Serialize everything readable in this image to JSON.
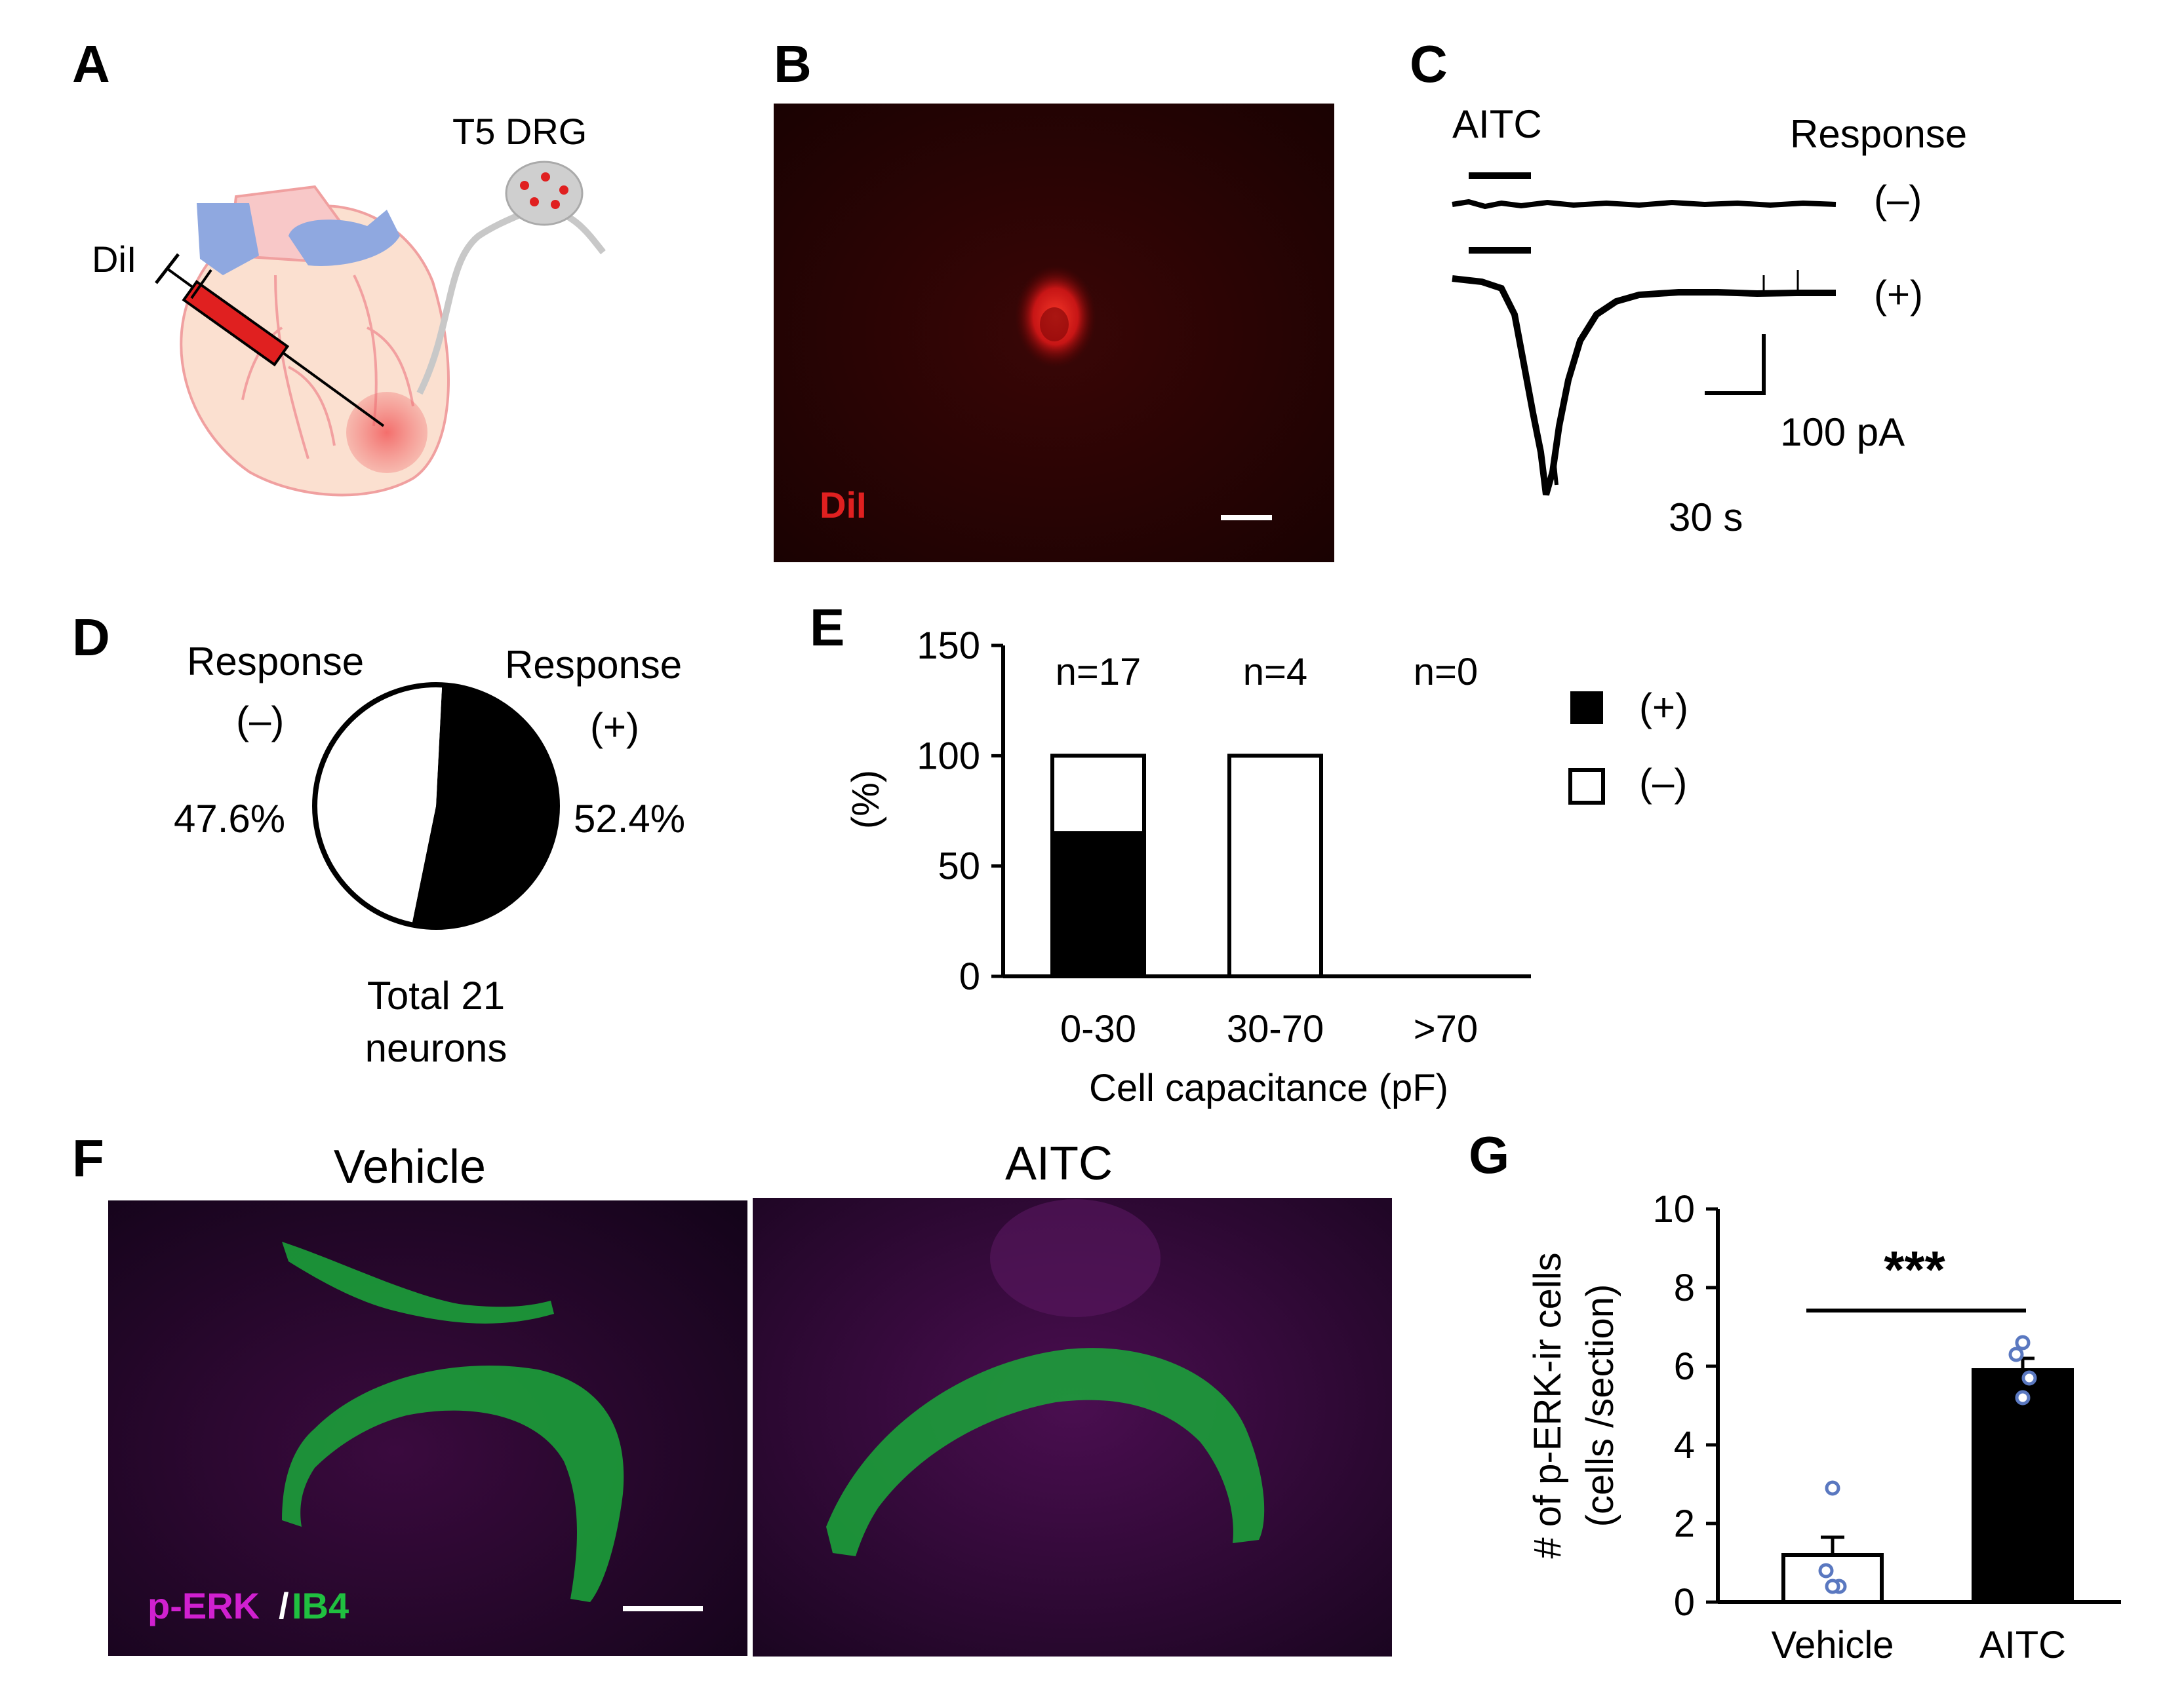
{
  "panels": {
    "a": {
      "letter": "A",
      "label_dii": "DiI",
      "label_drg": "T5 DRG"
    },
    "b": {
      "letter": "B",
      "label_dii": "DiI"
    },
    "c": {
      "letter": "C",
      "stimulus_label": "AITC",
      "response_header": "Response",
      "trace_neg_label": "(–)",
      "trace_pos_label": "(+)",
      "scale_y_label": "100 pA",
      "scale_x_label": "30 s"
    },
    "d": {
      "letter": "D",
      "neg_title": "Response",
      "neg_sign": "(–)",
      "pos_title": "Response",
      "pos_sign": "(+)",
      "neg_pct": "47.6%",
      "pos_pct": "52.4%",
      "total_line1": "Total 21",
      "total_line2": "neurons"
    },
    "e": {
      "letter": "E",
      "legend_pos": "(+)",
      "legend_neg": "(–)"
    },
    "f": {
      "letter": "F",
      "title_vehicle": "Vehicle",
      "title_aitc": "AITC",
      "stain_perk": "p-ERK",
      "stain_slash": "/",
      "stain_ib4": "IB4"
    },
    "g": {
      "letter": "G",
      "significance": "***"
    }
  },
  "colors": {
    "dii_red": "#e02020",
    "perk_magenta": "#d020d0",
    "ib4_green": "#20c040",
    "heart_fill": "#fbe0d0",
    "vessel_blue": "#8fa8e0",
    "vessel_pink": "#f6b6b6",
    "bar_black": "#000000",
    "dot_blue": "#5a78c0"
  },
  "chart_data": [
    {
      "id": "pie-d",
      "type": "pie",
      "labels": [
        "Response (–)",
        "Response (+)"
      ],
      "values": [
        47.6,
        52.4
      ],
      "total": "Total 21 neurons"
    },
    {
      "id": "bar-e",
      "type": "bar",
      "stacked": true,
      "categories": [
        "0-30",
        "30-70",
        ">70"
      ],
      "n_labels": [
        "n=17",
        "n=4",
        "n=0"
      ],
      "series": [
        {
          "name": "(+)",
          "values": [
            65,
            0,
            0
          ]
        },
        {
          "name": "(–)",
          "values": [
            35,
            100,
            0
          ]
        }
      ],
      "xlabel": "Cell capacitance (pF)",
      "ylabel": "(%)",
      "ylim": [
        0,
        150
      ],
      "yticks": [
        0,
        50,
        100,
        150
      ]
    },
    {
      "id": "bar-g",
      "type": "bar",
      "categories": [
        "Vehicle",
        "AITC"
      ],
      "values": [
        1.2,
        5.9
      ],
      "errors": [
        0.45,
        0.3
      ],
      "points": [
        [
          2.9,
          0.8,
          0.4,
          0.4
        ],
        [
          6.6,
          6.3,
          5.7,
          5.2
        ]
      ],
      "ylabel_line1": "# of p-ERK-ir cells",
      "ylabel_line2": "(cells /section)",
      "ylim": [
        0,
        10
      ],
      "yticks": [
        0,
        2,
        4,
        6,
        8,
        10
      ]
    }
  ]
}
